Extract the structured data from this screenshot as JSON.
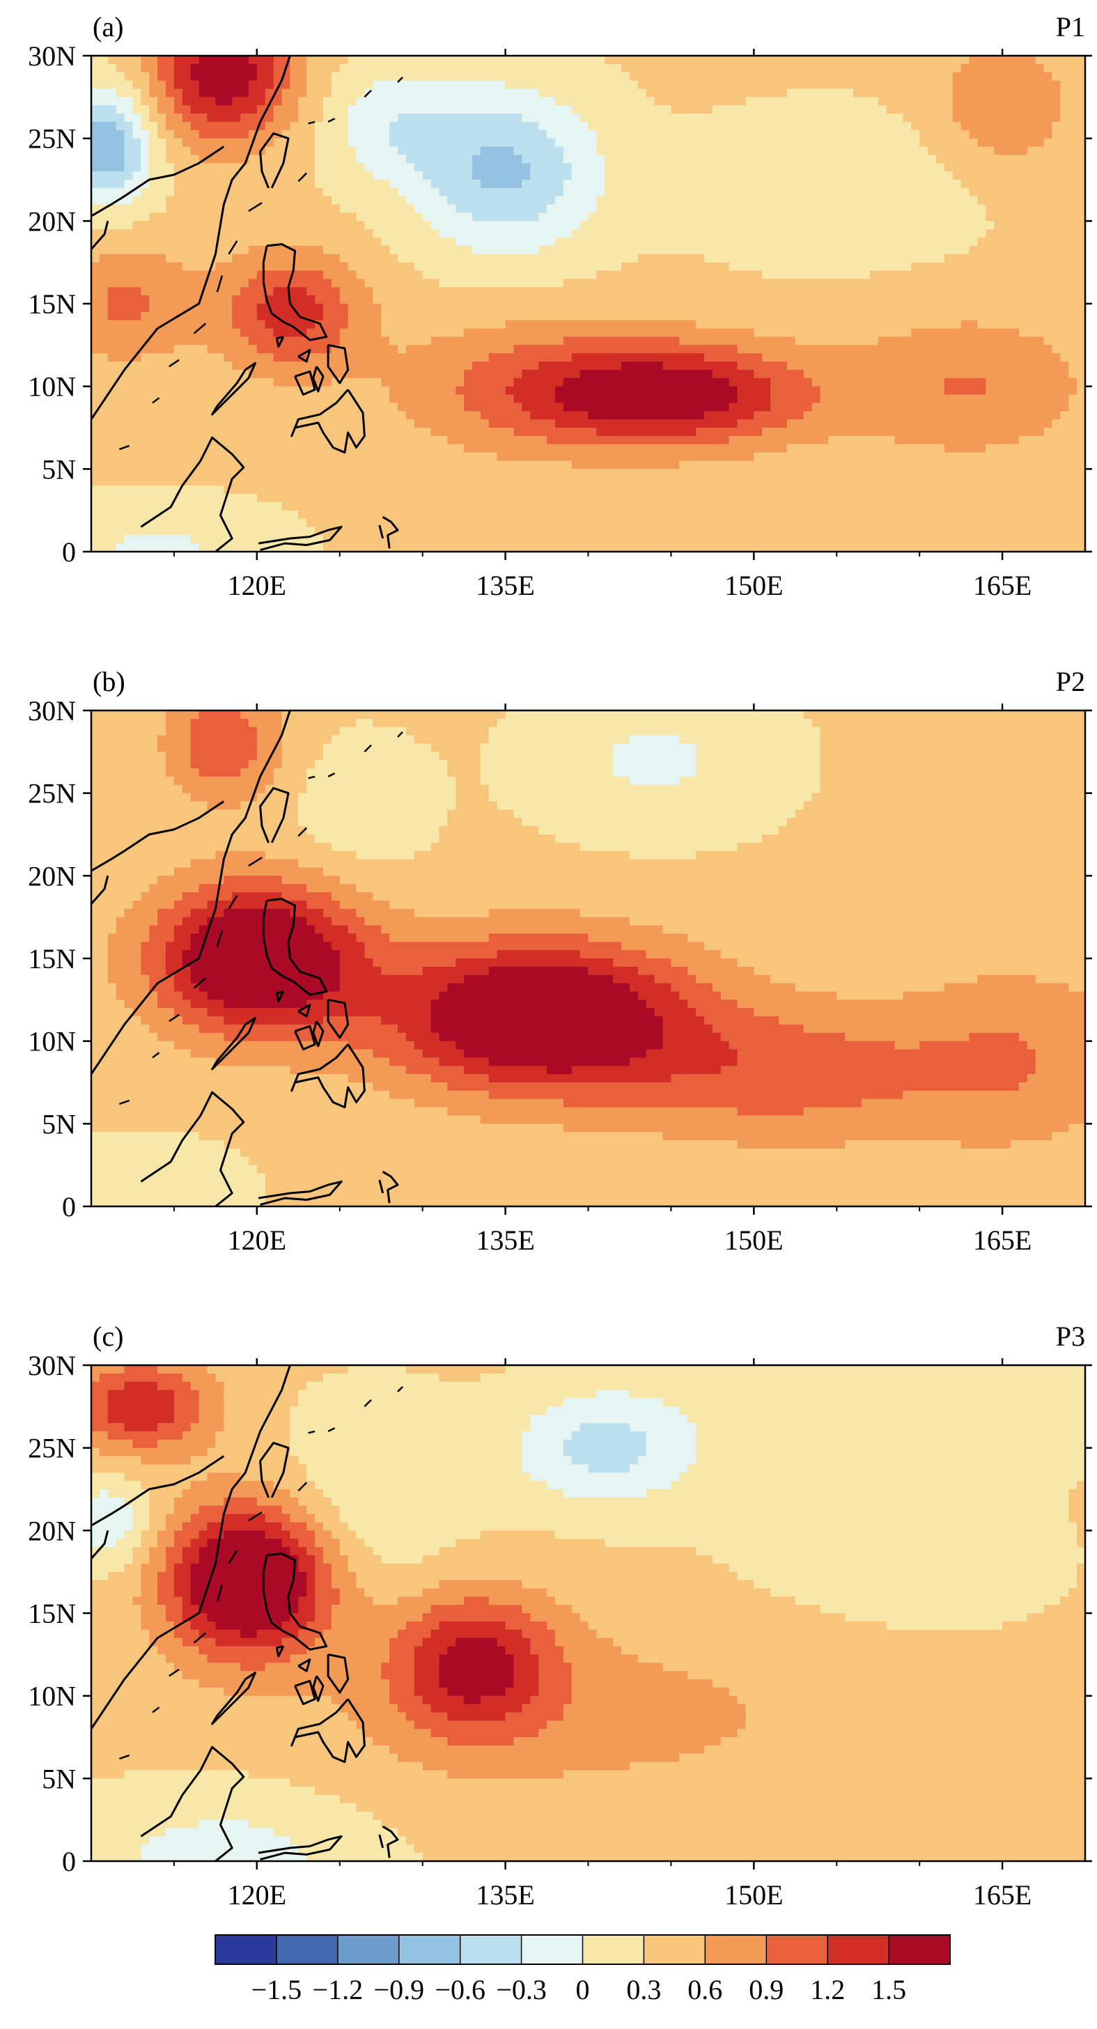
{
  "colorbar": {
    "labels": [
      "−1.5",
      "−1.2",
      "−0.9",
      "−0.6",
      "−0.3",
      "0",
      "0.3",
      "0.6",
      "0.9",
      "1.2",
      "1.5"
    ],
    "colors": [
      "#2c3a9b",
      "#4468b0",
      "#6d9bcb",
      "#95c2e0",
      "#bde0ee",
      "#e6f4f2",
      "#f7e7a9",
      "#f8c57c",
      "#f39a57",
      "#e8603c",
      "#d22e27",
      "#ab0a26"
    ],
    "levels": [
      -1.5,
      -1.2,
      -0.9,
      -0.6,
      -0.3,
      0,
      0.3,
      0.6,
      0.9,
      1.2,
      1.5
    ]
  },
  "axes": {
    "x_ticks": [
      "120E",
      "135E",
      "150E",
      "165E"
    ],
    "y_ticks": [
      "30N",
      "25N",
      "20N",
      "15N",
      "10N",
      "5N",
      "0"
    ]
  },
  "chart_data": [
    {
      "type": "heatmap",
      "panel_label": "(a)",
      "period_label": "P1",
      "x_range_lon": [
        110,
        170
      ],
      "y_range_lat": [
        0,
        30
      ],
      "x_ticks": [
        120,
        135,
        150,
        165
      ],
      "y_ticks": [
        0,
        5,
        10,
        15,
        20,
        25,
        30
      ],
      "grid": false,
      "features": [
        {
          "lon": 145,
          "lat": 9.5,
          "amp": 1.35,
          "sx": 6,
          "sy": 2.2
        },
        {
          "lon": 136,
          "lat": 10,
          "amp": 0.5,
          "sx": 6,
          "sy": 3
        },
        {
          "lon": 122,
          "lat": 14.5,
          "amp": 1.0,
          "sx": 3,
          "sy": 2.5
        },
        {
          "lon": 112,
          "lat": 15,
          "amp": 0.6,
          "sx": 3,
          "sy": 2.5
        },
        {
          "lon": 163,
          "lat": 10,
          "amp": 0.55,
          "sx": 5,
          "sy": 3
        },
        {
          "lon": 118,
          "lat": 29,
          "amp": 1.4,
          "sx": 3,
          "sy": 3
        },
        {
          "lon": 135,
          "lat": 23,
          "amp": -1.0,
          "sx": 4,
          "sy": 3.5
        },
        {
          "lon": 111,
          "lat": 24.5,
          "amp": -1.2,
          "sx": 2,
          "sy": 2.5
        },
        {
          "lon": 128,
          "lat": 26,
          "amp": -0.5,
          "sx": 3,
          "sy": 2.5
        },
        {
          "lon": 155,
          "lat": 22,
          "amp": -0.35,
          "sx": 6,
          "sy": 3
        },
        {
          "lon": 114,
          "lat": 0,
          "amp": -0.4,
          "sx": 5,
          "sy": 2
        },
        {
          "lon": 165,
          "lat": 27,
          "amp": 0.5,
          "sx": 3,
          "sy": 3
        }
      ]
    },
    {
      "type": "heatmap",
      "panel_label": "(b)",
      "period_label": "P2",
      "x_range_lon": [
        110,
        170
      ],
      "y_range_lat": [
        0,
        30
      ],
      "x_ticks": [
        120,
        135,
        150,
        165
      ],
      "y_ticks": [
        0,
        5,
        10,
        15,
        20,
        25,
        30
      ],
      "grid": false,
      "features": [
        {
          "lon": 120,
          "lat": 15,
          "amp": 1.8,
          "sx": 4.5,
          "sy": 3.2
        },
        {
          "lon": 137,
          "lat": 11.5,
          "amp": 1.8,
          "sx": 6.5,
          "sy": 3.2
        },
        {
          "lon": 152,
          "lat": 8,
          "amp": 0.7,
          "sx": 7,
          "sy": 3
        },
        {
          "lon": 166,
          "lat": 9,
          "amp": 0.5,
          "sx": 5,
          "sy": 4
        },
        {
          "lon": 118,
          "lat": 28,
          "amp": 0.8,
          "sx": 2.5,
          "sy": 2.5
        },
        {
          "lon": 144,
          "lat": 27,
          "amp": -0.4,
          "sx": 5,
          "sy": 3
        },
        {
          "lon": 126,
          "lat": 24,
          "amp": -0.25,
          "sx": 3,
          "sy": 3
        },
        {
          "lon": 113,
          "lat": 1,
          "amp": -0.3,
          "sx": 4,
          "sy": 2
        }
      ]
    },
    {
      "type": "heatmap",
      "panel_label": "(c)",
      "period_label": "P3",
      "x_range_lon": [
        110,
        170
      ],
      "y_range_lat": [
        0,
        30
      ],
      "x_ticks": [
        120,
        135,
        150,
        165
      ],
      "y_ticks": [
        0,
        5,
        10,
        15,
        20,
        25,
        30
      ],
      "grid": false,
      "features": [
        {
          "lon": 119.5,
          "lat": 17,
          "amp": 1.9,
          "sx": 3.5,
          "sy": 3.2
        },
        {
          "lon": 133,
          "lat": 12,
          "amp": 1.15,
          "sx": 3.5,
          "sy": 3
        },
        {
          "lon": 140,
          "lat": 9,
          "amp": 0.35,
          "sx": 12,
          "sy": 4
        },
        {
          "lon": 113,
          "lat": 27.5,
          "amp": 1.1,
          "sx": 3,
          "sy": 2
        },
        {
          "lon": 141,
          "lat": 25,
          "amp": -0.75,
          "sx": 4,
          "sy": 2.5
        },
        {
          "lon": 111,
          "lat": 20.5,
          "amp": -0.6,
          "sx": 2,
          "sy": 2
        },
        {
          "lon": 127,
          "lat": 22,
          "amp": -0.35,
          "sx": 4,
          "sy": 4
        },
        {
          "lon": 158,
          "lat": 28,
          "amp": -0.3,
          "sx": 8,
          "sy": 3
        },
        {
          "lon": 118,
          "lat": 0,
          "amp": -0.5,
          "sx": 6,
          "sy": 3
        },
        {
          "lon": 158,
          "lat": 18,
          "amp": -0.15,
          "sx": 8,
          "sy": 4
        }
      ]
    }
  ]
}
